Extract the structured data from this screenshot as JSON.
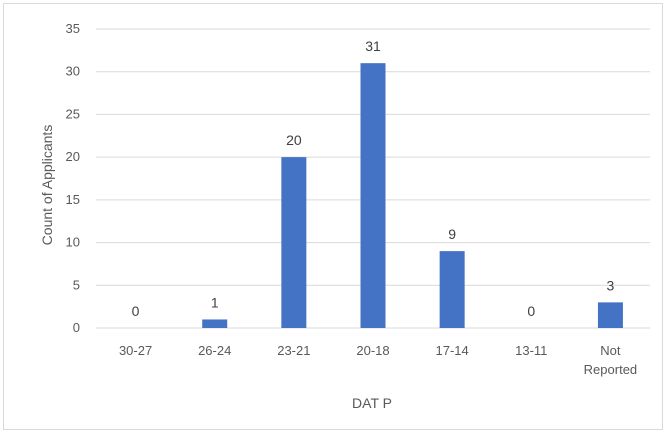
{
  "chart_data": {
    "type": "bar",
    "categories": [
      "30-27",
      "26-24",
      "23-21",
      "20-18",
      "17-14",
      "13-11",
      "Not Reported"
    ],
    "values": [
      0,
      1,
      20,
      31,
      9,
      0,
      3
    ],
    "data_labels": [
      "0",
      "1",
      "20",
      "31",
      "9",
      "0",
      "3"
    ],
    "xlabel": "DAT P",
    "ylabel": "Count of Applicants",
    "ylim": [
      0,
      35
    ],
    "yticks": [
      "0",
      "5",
      "10",
      "15",
      "20",
      "25",
      "30",
      "35"
    ],
    "grid": true,
    "bar_color": "#4472C4",
    "grid_color": "#d9d9d9"
  }
}
